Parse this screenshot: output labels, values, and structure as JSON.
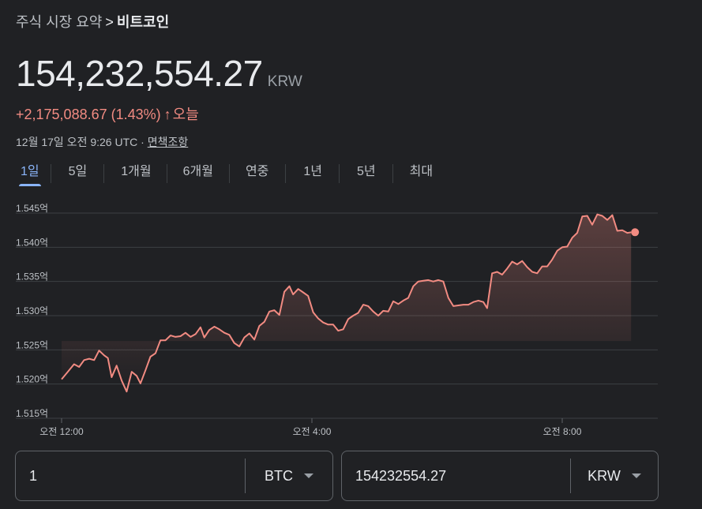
{
  "breadcrumb": {
    "parent": "주식 시장 요약",
    "separator": ">",
    "current": "비트코인"
  },
  "quote": {
    "price": "154,232,554.27",
    "currency": "KRW",
    "change": "+2,175,088.67 (1.43%)",
    "change_arrow": "↑",
    "change_period": "오늘",
    "timestamp": "12월 17일 오전 9:26 UTC",
    "timestamp_sep": "·",
    "disclaimer": "면책조항"
  },
  "tabs": [
    {
      "label": "1일",
      "active": true
    },
    {
      "label": "5일",
      "active": false
    },
    {
      "label": "1개월",
      "active": false
    },
    {
      "label": "6개월",
      "active": false
    },
    {
      "label": "연중",
      "active": false
    },
    {
      "label": "1년",
      "active": false
    },
    {
      "label": "5년",
      "active": false
    },
    {
      "label": "최대",
      "active": false
    }
  ],
  "colors": {
    "line": "#f28b82",
    "accent": "#8ab4f8",
    "grid": "#3c4043"
  },
  "chart_data": {
    "type": "area",
    "ylim": [
      1.515,
      1.545
    ],
    "xlim": [
      0,
      9.2
    ],
    "y_ticks": [
      {
        "value": 1.545,
        "label": "1.545억"
      },
      {
        "value": 1.54,
        "label": "1.540억"
      },
      {
        "value": 1.535,
        "label": "1.535억"
      },
      {
        "value": 1.53,
        "label": "1.530억"
      },
      {
        "value": 1.525,
        "label": "1.525억"
      },
      {
        "value": 1.52,
        "label": "1.520억"
      },
      {
        "value": 1.515,
        "label": "1.515억"
      }
    ],
    "x_ticks": [
      {
        "value": 0,
        "label": "오전 12:00"
      },
      {
        "value": 4,
        "label": "오전 4:00"
      },
      {
        "value": 8,
        "label": "오전 8:00"
      }
    ],
    "grid": true,
    "series": [
      {
        "values": [
          [
            0.0,
            1.5207
          ],
          [
            0.1,
            1.5218
          ],
          [
            0.2,
            1.5229
          ],
          [
            0.28,
            1.5225
          ],
          [
            0.36,
            1.5235
          ],
          [
            0.44,
            1.5237
          ],
          [
            0.52,
            1.5235
          ],
          [
            0.6,
            1.5249
          ],
          [
            0.68,
            1.5242
          ],
          [
            0.74,
            1.5238
          ],
          [
            0.8,
            1.521
          ],
          [
            0.88,
            1.5227
          ],
          [
            0.96,
            1.5205
          ],
          [
            1.04,
            1.5189
          ],
          [
            1.12,
            1.5218
          ],
          [
            1.2,
            1.5212
          ],
          [
            1.26,
            1.5201
          ],
          [
            1.34,
            1.522
          ],
          [
            1.42,
            1.524
          ],
          [
            1.5,
            1.5245
          ],
          [
            1.58,
            1.5264
          ],
          [
            1.66,
            1.5264
          ],
          [
            1.74,
            1.5271
          ],
          [
            1.82,
            1.5269
          ],
          [
            1.9,
            1.527
          ],
          [
            1.98,
            1.5275
          ],
          [
            2.06,
            1.5269
          ],
          [
            2.14,
            1.5273
          ],
          [
            2.22,
            1.5283
          ],
          [
            2.28,
            1.5268
          ],
          [
            2.36,
            1.5279
          ],
          [
            2.44,
            1.5284
          ],
          [
            2.52,
            1.528
          ],
          [
            2.6,
            1.5275
          ],
          [
            2.68,
            1.5272
          ],
          [
            2.76,
            1.526
          ],
          [
            2.84,
            1.5255
          ],
          [
            2.92,
            1.5268
          ],
          [
            3.0,
            1.5274
          ],
          [
            3.08,
            1.5265
          ],
          [
            3.16,
            1.5285
          ],
          [
            3.24,
            1.5291
          ],
          [
            3.32,
            1.5306
          ],
          [
            3.4,
            1.5308
          ],
          [
            3.48,
            1.5301
          ],
          [
            3.56,
            1.5335
          ],
          [
            3.64,
            1.5343
          ],
          [
            3.7,
            1.5331
          ],
          [
            3.78,
            1.5339
          ],
          [
            3.86,
            1.5334
          ],
          [
            3.94,
            1.5329
          ],
          [
            4.02,
            1.5305
          ],
          [
            4.1,
            1.5296
          ],
          [
            4.18,
            1.529
          ],
          [
            4.26,
            1.5287
          ],
          [
            4.34,
            1.5287
          ],
          [
            4.42,
            1.5278
          ],
          [
            4.5,
            1.528
          ],
          [
            4.58,
            1.5295
          ],
          [
            4.66,
            1.53
          ],
          [
            4.74,
            1.5304
          ],
          [
            4.82,
            1.5316
          ],
          [
            4.9,
            1.5314
          ],
          [
            4.98,
            1.5306
          ],
          [
            5.06,
            1.53
          ],
          [
            5.14,
            1.5307
          ],
          [
            5.22,
            1.5306
          ],
          [
            5.3,
            1.5321
          ],
          [
            5.38,
            1.5317
          ],
          [
            5.46,
            1.5322
          ],
          [
            5.54,
            1.5326
          ],
          [
            5.62,
            1.5343
          ],
          [
            5.7,
            1.535
          ],
          [
            5.78,
            1.5351
          ],
          [
            5.86,
            1.5352
          ],
          [
            5.94,
            1.535
          ],
          [
            6.02,
            1.5352
          ],
          [
            6.1,
            1.535
          ],
          [
            6.18,
            1.5326
          ],
          [
            6.26,
            1.5314
          ],
          [
            6.34,
            1.5315
          ],
          [
            6.42,
            1.5316
          ],
          [
            6.5,
            1.5316
          ],
          [
            6.58,
            1.532
          ],
          [
            6.66,
            1.5322
          ],
          [
            6.74,
            1.532
          ],
          [
            6.8,
            1.5311
          ],
          [
            6.88,
            1.5362
          ],
          [
            6.96,
            1.5364
          ],
          [
            7.04,
            1.536
          ],
          [
            7.12,
            1.5369
          ],
          [
            7.2,
            1.5379
          ],
          [
            7.28,
            1.5375
          ],
          [
            7.36,
            1.538
          ],
          [
            7.44,
            1.5371
          ],
          [
            7.52,
            1.5364
          ],
          [
            7.6,
            1.5362
          ],
          [
            7.68,
            1.5372
          ],
          [
            7.76,
            1.5372
          ],
          [
            7.84,
            1.5382
          ],
          [
            7.92,
            1.5395
          ],
          [
            8.0,
            1.54
          ],
          [
            8.08,
            1.5401
          ],
          [
            8.16,
            1.5414
          ],
          [
            8.24,
            1.5421
          ],
          [
            8.32,
            1.5445
          ],
          [
            8.4,
            1.5446
          ],
          [
            8.48,
            1.5433
          ],
          [
            8.56,
            1.5448
          ],
          [
            8.64,
            1.5446
          ],
          [
            8.72,
            1.544
          ],
          [
            8.8,
            1.5447
          ],
          [
            8.88,
            1.5424
          ],
          [
            8.96,
            1.5425
          ],
          [
            9.04,
            1.5421
          ],
          [
            9.1,
            1.5422
          ]
        ]
      }
    ]
  },
  "converter": {
    "from": {
      "amount": "1",
      "unit": "BTC"
    },
    "to": {
      "amount": "154232554.27",
      "unit": "KRW"
    }
  }
}
